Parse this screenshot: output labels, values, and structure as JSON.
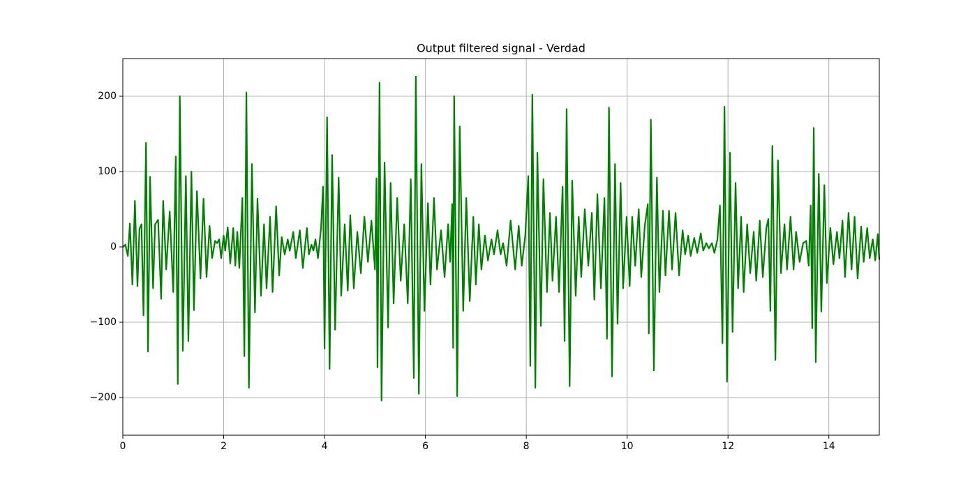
{
  "chart_data": {
    "type": "line",
    "title": "Output filtered signal - Verdad",
    "x": [
      0,
      0.05,
      0.1,
      0.14,
      0.19,
      0.24,
      0.29,
      0.33,
      0.37,
      0.41,
      0.46,
      0.5,
      0.54,
      0.6,
      0.64,
      0.7,
      0.76,
      0.8,
      0.86,
      0.93,
      1.0,
      1.05,
      1.09,
      1.13,
      1.19,
      1.25,
      1.3,
      1.36,
      1.41,
      1.47,
      1.54,
      1.6,
      1.66,
      1.72,
      1.77,
      1.83,
      1.87,
      1.91,
      1.95,
      2.0,
      2.03,
      2.08,
      2.13,
      2.19,
      2.23,
      2.27,
      2.31,
      2.37,
      2.41,
      2.45,
      2.5,
      2.56,
      2.62,
      2.67,
      2.74,
      2.8,
      2.85,
      2.92,
      2.97,
      3.04,
      3.1,
      3.15,
      3.21,
      3.27,
      3.31,
      3.38,
      3.43,
      3.51,
      3.57,
      3.65,
      3.69,
      3.74,
      3.78,
      3.82,
      3.87,
      3.93,
      3.97,
      4.0,
      4.05,
      4.1,
      4.15,
      4.21,
      4.28,
      4.33,
      4.4,
      4.46,
      4.51,
      4.58,
      4.65,
      4.72,
      4.79,
      4.86,
      4.93,
      5.0,
      5.03,
      5.05,
      5.09,
      5.13,
      5.19,
      5.26,
      5.31,
      5.37,
      5.44,
      5.51,
      5.58,
      5.65,
      5.71,
      5.77,
      5.81,
      5.87,
      5.92,
      5.98,
      6.05,
      6.1,
      6.17,
      6.23,
      6.31,
      6.38,
      6.45,
      6.49,
      6.53,
      6.55,
      6.57,
      6.63,
      6.68,
      6.75,
      6.81,
      6.88,
      6.95,
      7.0,
      7.06,
      7.11,
      7.18,
      7.24,
      7.31,
      7.36,
      7.43,
      7.49,
      7.54,
      7.61,
      7.69,
      7.78,
      7.85,
      7.91,
      7.98,
      8.04,
      8.08,
      8.12,
      8.18,
      8.22,
      8.29,
      8.34,
      8.41,
      8.47,
      8.52,
      8.59,
      8.65,
      8.72,
      8.76,
      8.8,
      8.86,
      8.91,
      8.98,
      9.04,
      9.09,
      9.16,
      9.23,
      9.3,
      9.35,
      9.41,
      9.48,
      9.55,
      9.6,
      9.64,
      9.7,
      9.76,
      9.81,
      9.87,
      9.92,
      9.99,
      10.05,
      10.1,
      10.16,
      10.23,
      10.28,
      10.35,
      10.41,
      10.43,
      10.47,
      10.53,
      10.59,
      10.64,
      10.71,
      10.76,
      10.83,
      10.89,
      10.96,
      11.03,
      11.1,
      11.15,
      11.21,
      11.26,
      11.33,
      11.39,
      11.46,
      11.51,
      11.57,
      11.62,
      11.68,
      11.73,
      11.79,
      11.84,
      11.89,
      11.93,
      11.98,
      12.04,
      12.09,
      12.15,
      12.2,
      12.26,
      12.31,
      12.38,
      12.44,
      12.51,
      12.56,
      12.63,
      12.69,
      12.76,
      12.8,
      12.84,
      12.88,
      12.94,
      12.99,
      13.05,
      13.12,
      13.17,
      13.24,
      13.3,
      13.35,
      13.42,
      13.49,
      13.55,
      13.6,
      13.64,
      13.67,
      13.7,
      13.74,
      13.8,
      13.85,
      13.91,
      13.96,
      14.03,
      14.09,
      14.16,
      14.21,
      14.27,
      14.32,
      14.39,
      14.45,
      14.51,
      14.57,
      14.64,
      14.69,
      14.76,
      14.81,
      14.87,
      14.92,
      14.97,
      15.0
    ],
    "values": [
      0,
      3,
      -12,
      31,
      -50,
      61,
      -52,
      24,
      30,
      -91,
      138,
      -139,
      93,
      -55,
      30,
      36,
      -69,
      61,
      -30,
      47,
      -60,
      120,
      -182,
      200,
      -138,
      94,
      -125,
      100,
      -84,
      74,
      -42,
      64,
      -40,
      28,
      -15,
      8,
      5,
      10,
      -15,
      15,
      -5,
      26,
      -22,
      25,
      -25,
      20,
      -28,
      65,
      -145,
      205,
      -187,
      110,
      -87,
      64,
      -65,
      30,
      -55,
      40,
      -60,
      54,
      -38,
      13,
      -10,
      10,
      -5,
      20,
      -15,
      22,
      -28,
      25,
      -10,
      3,
      -5,
      10,
      -15,
      25,
      80,
      -135,
      172,
      -162,
      122,
      -110,
      92,
      -65,
      30,
      -58,
      42,
      -55,
      20,
      -35,
      40,
      -20,
      35,
      -30,
      91,
      -160,
      218,
      -204,
      112,
      -107,
      85,
      -75,
      65,
      -45,
      30,
      -75,
      90,
      -174,
      226,
      -195,
      110,
      -85,
      58,
      -50,
      65,
      -30,
      22,
      -40,
      30,
      -20,
      57,
      -134,
      200,
      -198,
      160,
      -85,
      65,
      -72,
      40,
      -50,
      30,
      -30,
      15,
      -18,
      10,
      -10,
      22,
      -10,
      5,
      -25,
      35,
      -30,
      28,
      -25,
      15,
      94,
      -158,
      202,
      -187,
      125,
      -105,
      90,
      -60,
      45,
      -45,
      40,
      -60,
      80,
      -125,
      183,
      -185,
      88,
      -65,
      40,
      -40,
      50,
      -25,
      45,
      -70,
      70,
      -55,
      65,
      -122,
      185,
      -172,
      110,
      -102,
      85,
      -55,
      40,
      -52,
      40,
      -25,
      50,
      -40,
      28,
      57,
      -115,
      169,
      -164,
      92,
      -60,
      48,
      -38,
      48,
      -30,
      45,
      -38,
      22,
      -10,
      15,
      -12,
      12,
      -8,
      18,
      -5,
      5,
      -2,
      5,
      -8,
      10,
      55,
      -128,
      186,
      -179,
      125,
      -113,
      85,
      -55,
      40,
      -60,
      30,
      -35,
      20,
      -45,
      35,
      -40,
      25,
      37,
      -85,
      134,
      -150,
      115,
      -35,
      30,
      -30,
      40,
      -30,
      20,
      -20,
      5,
      8,
      -25,
      55,
      -108,
      158,
      -153,
      97,
      -86,
      82,
      -48,
      25,
      -23,
      20,
      -15,
      35,
      -40,
      45,
      -30,
      40,
      -42,
      27,
      -20,
      25,
      -15,
      10,
      -18,
      17,
      -17
    ],
    "color": "#008000",
    "xlim": [
      0,
      15
    ],
    "xticks": [
      0,
      2,
      4,
      6,
      8,
      10,
      12,
      14
    ],
    "ylim": [
      -250,
      250
    ],
    "yticks": [
      {
        "value": -200,
        "label": "−200"
      },
      {
        "value": -100,
        "label": "−100"
      },
      0,
      100,
      200
    ],
    "grid": true
  }
}
